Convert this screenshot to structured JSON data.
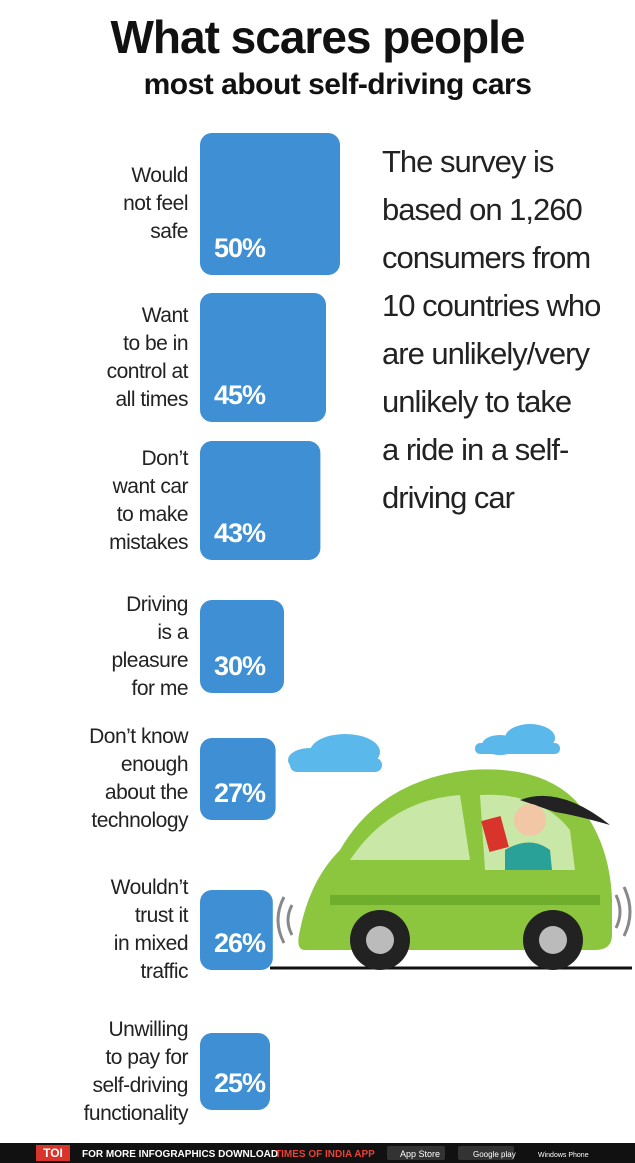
{
  "chart_data": {
    "type": "bar",
    "orientation": "horizontal",
    "title": "What scares people",
    "subtitle": "most about self-driving cars",
    "categories": [
      "Would\nnot feel\nsafe",
      "Want\nto be in\ncontrol at\nall times",
      "Don’t\nwant car\nto make\nmistakes",
      "Driving\nis a\npleasure\nfor me",
      "Don’t know\nenough\nabout the\ntechnology",
      "Wouldn’t\ntrust it\nin mixed\ntraffic",
      "Unwilling\nto pay for\nself-driving\nfunctionality"
    ],
    "values": [
      50,
      45,
      43,
      30,
      27,
      26,
      25
    ],
    "value_labels": [
      "50%",
      "45%",
      "43%",
      "30%",
      "27%",
      "26%",
      "25%"
    ],
    "color": "#3e8fd3",
    "annotation": "The survey is\nbased on 1,260\nconsumers from\n10 countries who\nare unlikely/very\nunlikely to take\na ride in a self-\ndriving car"
  },
  "footer": {
    "brand": "TOI",
    "text": "FOR MORE  INFOGRAPHICS DOWNLOAD",
    "app": "TIMES OF INDIA APP",
    "store1": "App Store",
    "store2": "Google play",
    "store3": "Windows Phone"
  }
}
